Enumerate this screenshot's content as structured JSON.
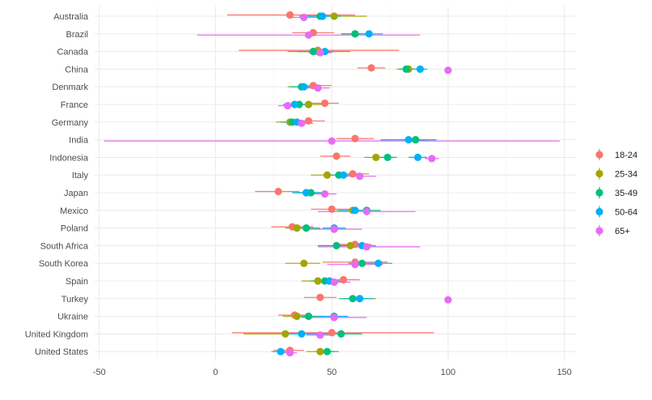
{
  "chart_data": {
    "type": "scatter",
    "subtype": "dot-with-error-bars",
    "title": "",
    "xlabel": "",
    "ylabel": "",
    "xlim": [
      -52,
      155
    ],
    "x_ticks": [
      -50,
      0,
      50,
      100,
      150
    ],
    "grid": true,
    "legend_position": "right",
    "categories": [
      "Australia",
      "Brazil",
      "Canada",
      "China",
      "Denmark",
      "France",
      "Germany",
      "India",
      "Indonesia",
      "Italy",
      "Japan",
      "Mexico",
      "Poland",
      "South Africa",
      "South Korea",
      "Spain",
      "Turkey",
      "Ukraine",
      "United Kingdom",
      "United States"
    ],
    "series": [
      {
        "name": "18-24",
        "color": "#F8766D",
        "values": [
          32,
          42,
          44,
          67,
          42,
          47,
          40,
          60,
          52,
          59,
          27,
          50,
          33,
          60,
          60,
          55,
          45,
          34,
          50,
          32
        ],
        "ci_low": [
          5,
          33,
          10,
          61,
          36,
          40,
          33,
          52,
          45,
          52,
          17,
          41,
          24,
          53,
          46,
          48,
          38,
          27,
          7,
          25
        ],
        "ci_high": [
          60,
          51,
          79,
          73,
          50,
          53,
          47,
          68,
          58,
          66,
          36,
          59,
          42,
          67,
          74,
          62,
          52,
          41,
          94,
          38
        ]
      },
      {
        "name": "25-34",
        "color": "#A3A500",
        "values": [
          51,
          60,
          44,
          83,
          37,
          40,
          32,
          86,
          69,
          48,
          39,
          59,
          35,
          58,
          38,
          44,
          62,
          35,
          30,
          45
        ],
        "ci_low": [
          38,
          54,
          31,
          78,
          31,
          33,
          26,
          82,
          64,
          41,
          33,
          52,
          30,
          51,
          30,
          37,
          55,
          29,
          12,
          39
        ],
        "ci_high": [
          65,
          66,
          58,
          88,
          43,
          47,
          38,
          90,
          74,
          55,
          46,
          66,
          40,
          65,
          45,
          51,
          69,
          41,
          48,
          51
        ]
      },
      {
        "name": "35-49",
        "color": "#00BF7D",
        "values": [
          45,
          60,
          42,
          82,
          37,
          36,
          33,
          86,
          74,
          53,
          41,
          65,
          39,
          52,
          63,
          47,
          59,
          40,
          54,
          48
        ],
        "ci_low": [
          36,
          54,
          35,
          79,
          32,
          31,
          28,
          81,
          70,
          47,
          35,
          59,
          33,
          44,
          57,
          41,
          53,
          34,
          45,
          43
        ],
        "ci_high": [
          54,
          66,
          49,
          85,
          42,
          41,
          38,
          91,
          78,
          59,
          47,
          71,
          45,
          60,
          69,
          53,
          65,
          46,
          63,
          53
        ]
      },
      {
        "name": "50-64",
        "color": "#00B0F6",
        "values": [
          46,
          66,
          47,
          88,
          38,
          34,
          35,
          83,
          87,
          55,
          39,
          60,
          51,
          63,
          70,
          49,
          62,
          51,
          37,
          28
        ],
        "ci_low": [
          40,
          60,
          43,
          85,
          34,
          29,
          30,
          71,
          83,
          49,
          33,
          53,
          46,
          57,
          64,
          43,
          56,
          45,
          29,
          24
        ],
        "ci_high": [
          52,
          72,
          51,
          91,
          42,
          39,
          40,
          95,
          91,
          61,
          45,
          67,
          56,
          69,
          76,
          55,
          68,
          57,
          45,
          32
        ]
      },
      {
        "name": "65+",
        "color": "#E76BF3",
        "values": [
          38,
          40,
          45,
          100,
          44,
          31,
          37,
          50,
          93,
          62,
          47,
          65,
          51,
          65,
          60,
          51,
          100,
          51,
          45,
          32
        ],
        "ci_low": [
          32,
          -8,
          40,
          100,
          39,
          27,
          32,
          -48,
          90,
          55,
          42,
          44,
          39,
          44,
          48,
          44,
          100,
          37,
          39,
          29
        ],
        "ci_high": [
          44,
          88,
          50,
          100,
          49,
          35,
          42,
          148,
          96,
          69,
          52,
          86,
          63,
          88,
          72,
          58,
          100,
          65,
          51,
          35
        ]
      }
    ]
  }
}
